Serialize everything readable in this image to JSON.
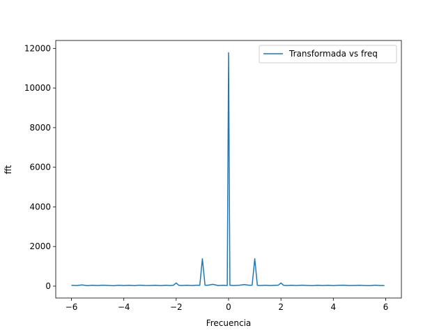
{
  "chart_data": {
    "type": "line",
    "xlabel": "Frecuencia",
    "ylabel": "fft",
    "xlim": [
      -6.6,
      6.6
    ],
    "ylim": [
      -600,
      12400
    ],
    "xticks": [
      -6,
      -4,
      -2,
      0,
      2,
      4,
      6
    ],
    "xtick_labels": [
      "−6",
      "−4",
      "−2",
      "0",
      "2",
      "4",
      "6"
    ],
    "yticks": [
      0,
      2000,
      4000,
      6000,
      8000,
      10000,
      12000
    ],
    "ytick_labels": [
      "0",
      "2000",
      "4000",
      "6000",
      "8000",
      "10000",
      "12000"
    ],
    "legend_position": "top-right",
    "grid": false,
    "series": [
      {
        "name": "Transformada vs freq",
        "color": "#1f77b4",
        "x": [
          -6.0,
          -5.8,
          -5.6,
          -5.4,
          -5.2,
          -5.0,
          -4.8,
          -4.6,
          -4.4,
          -4.2,
          -4.0,
          -3.8,
          -3.6,
          -3.4,
          -3.2,
          -3.0,
          -2.8,
          -2.6,
          -2.4,
          -2.2,
          -2.1,
          -2.0,
          -1.9,
          -1.8,
          -1.6,
          -1.4,
          -1.2,
          -1.1,
          -1.0,
          -0.9,
          -0.8,
          -0.6,
          -0.4,
          -0.2,
          -0.05,
          0.0,
          0.05,
          0.2,
          0.4,
          0.6,
          0.8,
          0.9,
          1.0,
          1.1,
          1.2,
          1.4,
          1.6,
          1.8,
          1.9,
          2.0,
          2.1,
          2.2,
          2.4,
          2.6,
          2.8,
          3.0,
          3.2,
          3.4,
          3.6,
          3.8,
          4.0,
          4.2,
          4.4,
          4.6,
          4.8,
          5.0,
          5.2,
          5.4,
          5.6,
          5.8,
          5.95
        ],
        "y": [
          40,
          30,
          60,
          25,
          45,
          30,
          50,
          35,
          20,
          45,
          30,
          40,
          25,
          50,
          35,
          30,
          45,
          25,
          40,
          30,
          50,
          160,
          40,
          30,
          45,
          30,
          50,
          40,
          1380,
          50,
          40,
          90,
          30,
          40,
          30,
          11780,
          40,
          30,
          45,
          80,
          40,
          50,
          1380,
          40,
          30,
          45,
          30,
          40,
          50,
          160,
          40,
          30,
          45,
          30,
          50,
          35,
          25,
          40,
          30,
          45,
          25,
          40,
          50,
          30,
          35,
          40,
          30,
          25,
          50,
          30,
          30
        ]
      }
    ]
  }
}
